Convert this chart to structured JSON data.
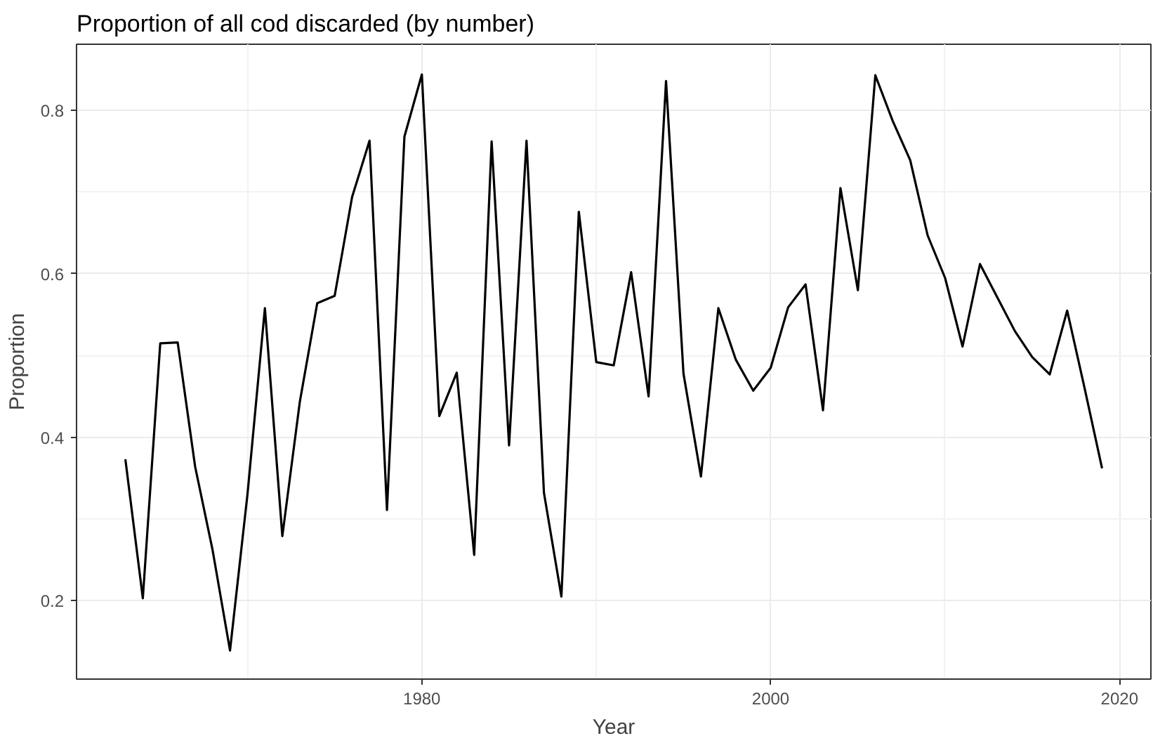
{
  "chart_data": {
    "type": "line",
    "title": "Proportion of all cod discarded (by number)",
    "xlabel": "Year",
    "ylabel": "Proportion",
    "x": [
      1963,
      1964,
      1965,
      1966,
      1967,
      1968,
      1969,
      1970,
      1971,
      1972,
      1973,
      1974,
      1975,
      1976,
      1977,
      1978,
      1979,
      1980,
      1981,
      1982,
      1983,
      1984,
      1985,
      1986,
      1987,
      1988,
      1989,
      1990,
      1991,
      1992,
      1993,
      1994,
      1995,
      1996,
      1997,
      1998,
      1999,
      2000,
      2001,
      2002,
      2003,
      2004,
      2005,
      2006,
      2007,
      2008,
      2009,
      2010,
      2011,
      2012,
      2013,
      2014,
      2015,
      2016,
      2017,
      2018,
      2019
    ],
    "series": [
      {
        "color": "#000000",
        "values": [
          0.373,
          0.203,
          0.515,
          0.516,
          0.364,
          0.262,
          0.139,
          0.33,
          0.558,
          0.279,
          0.443,
          0.564,
          0.573,
          0.694,
          0.763,
          0.311,
          0.768,
          0.844,
          0.426,
          0.479,
          0.256,
          0.762,
          0.39,
          0.763,
          0.332,
          0.205,
          0.676,
          0.492,
          0.488,
          0.602,
          0.45,
          0.836,
          0.478,
          0.352,
          0.558,
          0.495,
          0.457,
          0.485,
          0.559,
          0.587,
          0.433,
          0.705,
          0.58,
          0.843,
          0.787,
          0.739,
          0.647,
          0.595,
          0.511,
          0.612,
          0.571,
          0.53,
          0.498,
          0.477,
          0.555,
          0.46,
          0.362
        ]
      }
    ],
    "xlim": [
      1960.2,
      2021.8
    ],
    "ylim": [
      0.104,
      0.881
    ],
    "xticks": [
      {
        "value": 1970,
        "label": null
      },
      1980,
      {
        "value": 1990,
        "label": null
      },
      2000,
      {
        "value": 2010,
        "label": null
      },
      2020
    ],
    "yticks": [
      0.2,
      {
        "value": 0.3,
        "label": null
      },
      0.4,
      {
        "value": 0.5,
        "label": null
      },
      0.6,
      {
        "value": 0.7,
        "label": null
      },
      0.8
    ],
    "grid": true,
    "marker": "none",
    "line_style": "solid"
  }
}
